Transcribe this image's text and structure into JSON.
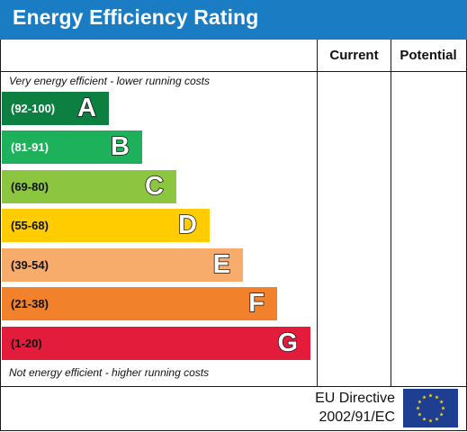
{
  "header": {
    "title": "Energy Efficiency Rating"
  },
  "columns": {
    "current": "Current",
    "potential": "Potential"
  },
  "notes": {
    "top": "Very energy efficient - lower running costs",
    "bottom": "Not energy efficient - higher running costs"
  },
  "bands": [
    {
      "range": "(92-100)",
      "letter": "A",
      "color": "#0c7f41",
      "text_color": "#ffffff"
    },
    {
      "range": "(81-91)",
      "letter": "B",
      "color": "#1cb15a",
      "text_color": "#ffffff"
    },
    {
      "range": "(69-80)",
      "letter": "C",
      "color": "#8cc540",
      "text_color": "#111111"
    },
    {
      "range": "(55-68)",
      "letter": "D",
      "color": "#ffcc00",
      "text_color": "#111111"
    },
    {
      "range": "(39-54)",
      "letter": "E",
      "color": "#f8ac6b",
      "text_color": "#111111"
    },
    {
      "range": "(21-38)",
      "letter": "F",
      "color": "#f1822b",
      "text_color": "#111111"
    },
    {
      "range": "(1-20)",
      "letter": "G",
      "color": "#e41c3c",
      "text_color": "#111111"
    }
  ],
  "footer": {
    "eu_line1": "EU Directive",
    "eu_line2": "2002/91/EC"
  },
  "icons": {
    "flag": "eu-flag-icon"
  },
  "colors": {
    "header": "#1a7dc4",
    "flag_blue": "#1e3f91",
    "flag_star": "#ffdd00"
  }
}
